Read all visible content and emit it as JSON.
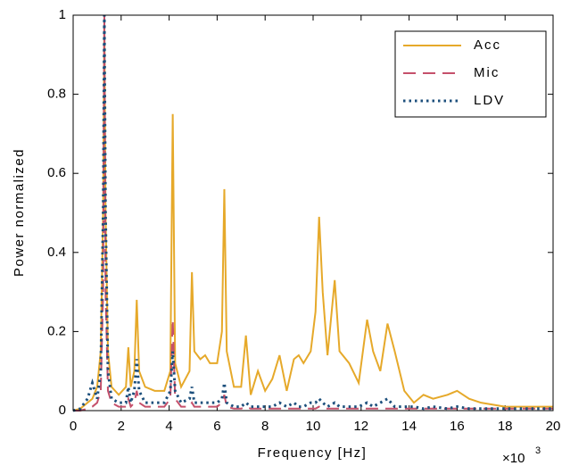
{
  "chart_data": {
    "type": "line",
    "xlabel": "Frequency [Hz]",
    "ylabel": "Power normalized",
    "x_multiplier": "×10",
    "x_multiplier_exp": "3",
    "x": [
      0,
      0.3,
      0.6,
      0.8,
      1.0,
      1.15,
      1.25,
      1.3,
      1.35,
      1.45,
      1.6,
      1.9,
      2.2,
      2.3,
      2.4,
      2.55,
      2.65,
      2.75,
      3.0,
      3.4,
      3.8,
      4.05,
      4.15,
      4.25,
      4.5,
      4.85,
      4.95,
      5.05,
      5.3,
      5.5,
      5.7,
      6.0,
      6.2,
      6.3,
      6.4,
      6.7,
      7.0,
      7.2,
      7.4,
      7.7,
      8.0,
      8.3,
      8.6,
      8.9,
      9.2,
      9.4,
      9.6,
      9.9,
      10.1,
      10.25,
      10.4,
      10.6,
      10.9,
      11.1,
      11.5,
      11.9,
      12.25,
      12.5,
      12.8,
      13.1,
      13.4,
      13.8,
      14.2,
      14.6,
      15.0,
      15.6,
      16.0,
      16.5,
      17.0,
      18.0,
      19.0,
      20.0
    ],
    "series": [
      {
        "name": "Acc",
        "color": "#e6a92a",
        "dash": "solid",
        "values": [
          0,
          0.005,
          0.02,
          0.03,
          0.06,
          0.15,
          0.5,
          1.0,
          0.5,
          0.15,
          0.06,
          0.04,
          0.06,
          0.16,
          0.06,
          0.1,
          0.28,
          0.1,
          0.06,
          0.05,
          0.05,
          0.1,
          0.75,
          0.12,
          0.06,
          0.1,
          0.35,
          0.15,
          0.13,
          0.14,
          0.12,
          0.12,
          0.2,
          0.56,
          0.15,
          0.06,
          0.06,
          0.19,
          0.04,
          0.1,
          0.05,
          0.08,
          0.14,
          0.05,
          0.13,
          0.14,
          0.12,
          0.15,
          0.25,
          0.49,
          0.3,
          0.14,
          0.33,
          0.15,
          0.12,
          0.07,
          0.23,
          0.15,
          0.1,
          0.22,
          0.15,
          0.05,
          0.02,
          0.04,
          0.03,
          0.04,
          0.05,
          0.03,
          0.02,
          0.01,
          0.01,
          0.01
        ]
      },
      {
        "name": "Mic",
        "color": "#c5506b",
        "dash": "dashed",
        "values": [
          0,
          0,
          0.005,
          0.01,
          0.02,
          0.05,
          0.3,
          1.0,
          0.3,
          0.05,
          0.02,
          0.01,
          0.01,
          0.03,
          0.01,
          0.02,
          0.05,
          0.02,
          0.01,
          0.01,
          0.01,
          0.03,
          0.23,
          0.03,
          0.01,
          0.01,
          0.02,
          0.01,
          0.01,
          0.01,
          0.01,
          0.01,
          0.02,
          0.04,
          0.01,
          0.005,
          0.005,
          0.01,
          0.005,
          0.005,
          0.005,
          0.005,
          0.005,
          0.005,
          0.005,
          0.005,
          0.005,
          0.005,
          0.005,
          0.01,
          0.005,
          0.005,
          0.005,
          0.005,
          0.005,
          0.005,
          0.005,
          0.005,
          0.005,
          0.005,
          0.005,
          0.005,
          0.005,
          0.005,
          0.005,
          0.005,
          0.005,
          0.005,
          0.005,
          0.005,
          0.005,
          0.005
        ]
      },
      {
        "name": "LDV",
        "color": "#1c4f7c",
        "dash": "dotted",
        "values": [
          0,
          0.005,
          0.03,
          0.07,
          0.03,
          0.1,
          0.5,
          1.0,
          0.5,
          0.1,
          0.03,
          0.02,
          0.02,
          0.06,
          0.02,
          0.05,
          0.13,
          0.05,
          0.02,
          0.02,
          0.02,
          0.05,
          0.15,
          0.05,
          0.02,
          0.03,
          0.06,
          0.02,
          0.02,
          0.02,
          0.02,
          0.02,
          0.03,
          0.07,
          0.02,
          0.01,
          0.01,
          0.02,
          0.01,
          0.01,
          0.01,
          0.01,
          0.02,
          0.01,
          0.02,
          0.01,
          0.01,
          0.02,
          0.02,
          0.03,
          0.02,
          0.01,
          0.02,
          0.01,
          0.01,
          0.01,
          0.02,
          0.01,
          0.02,
          0.03,
          0.01,
          0.01,
          0.01,
          0.005,
          0.01,
          0.005,
          0.01,
          0.005,
          0.005,
          0.005,
          0.005,
          0.005
        ]
      }
    ],
    "xlim": [
      0,
      20
    ],
    "xticks": [
      0,
      2,
      4,
      6,
      8,
      10,
      12,
      14,
      16,
      18,
      20
    ],
    "ylim": [
      0,
      1
    ],
    "yticks": [
      0,
      0.2,
      0.4,
      0.6,
      0.8,
      1
    ],
    "grid": false,
    "legend": "upper right"
  }
}
